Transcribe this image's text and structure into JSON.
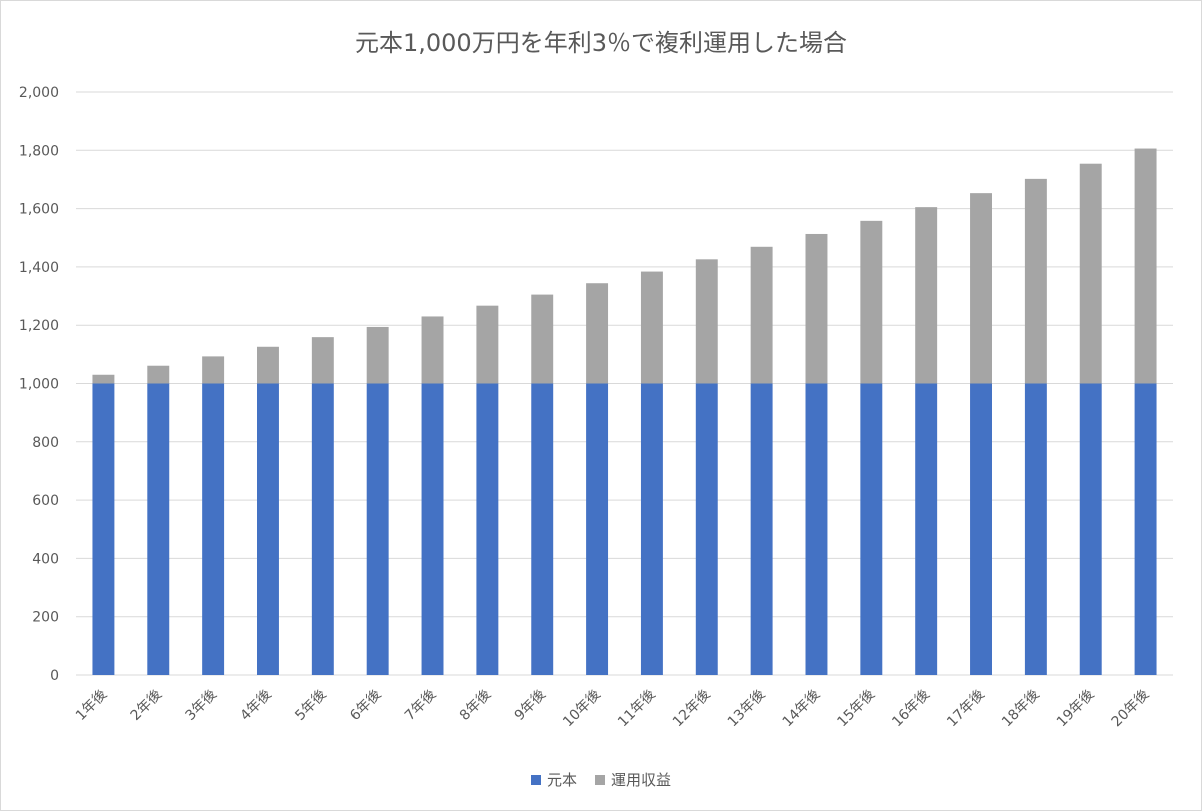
{
  "chart_data": {
    "type": "bar",
    "stacked": true,
    "title": "元本1,000万円を年利3％で複利運用した場合",
    "xlabel": "",
    "ylabel": "",
    "ylim": [
      0,
      2000
    ],
    "yticks": [
      0,
      200,
      400,
      600,
      800,
      1000,
      1200,
      1400,
      1600,
      1800,
      2000
    ],
    "ytick_labels": [
      "0",
      "200",
      "400",
      "600",
      "800",
      "1,000",
      "1,200",
      "1,400",
      "1,600",
      "1,800",
      "2,000"
    ],
    "grid": true,
    "legend_position": "bottom",
    "categories": [
      "1年後",
      "2年後",
      "3年後",
      "4年後",
      "5年後",
      "6年後",
      "7年後",
      "8年後",
      "9年後",
      "10年後",
      "11年後",
      "12年後",
      "13年後",
      "14年後",
      "15年後",
      "16年後",
      "17年後",
      "18年後",
      "19年後",
      "20年後"
    ],
    "series": [
      {
        "name": "元本",
        "color": "#4472c4",
        "values": [
          1000,
          1000,
          1000,
          1000,
          1000,
          1000,
          1000,
          1000,
          1000,
          1000,
          1000,
          1000,
          1000,
          1000,
          1000,
          1000,
          1000,
          1000,
          1000,
          1000
        ]
      },
      {
        "name": "運用収益",
        "color": "#a5a5a5",
        "values": [
          30,
          61,
          93,
          126,
          159,
          194,
          230,
          267,
          305,
          344,
          384,
          426,
          469,
          513,
          558,
          605,
          653,
          702,
          754,
          806
        ]
      }
    ]
  }
}
